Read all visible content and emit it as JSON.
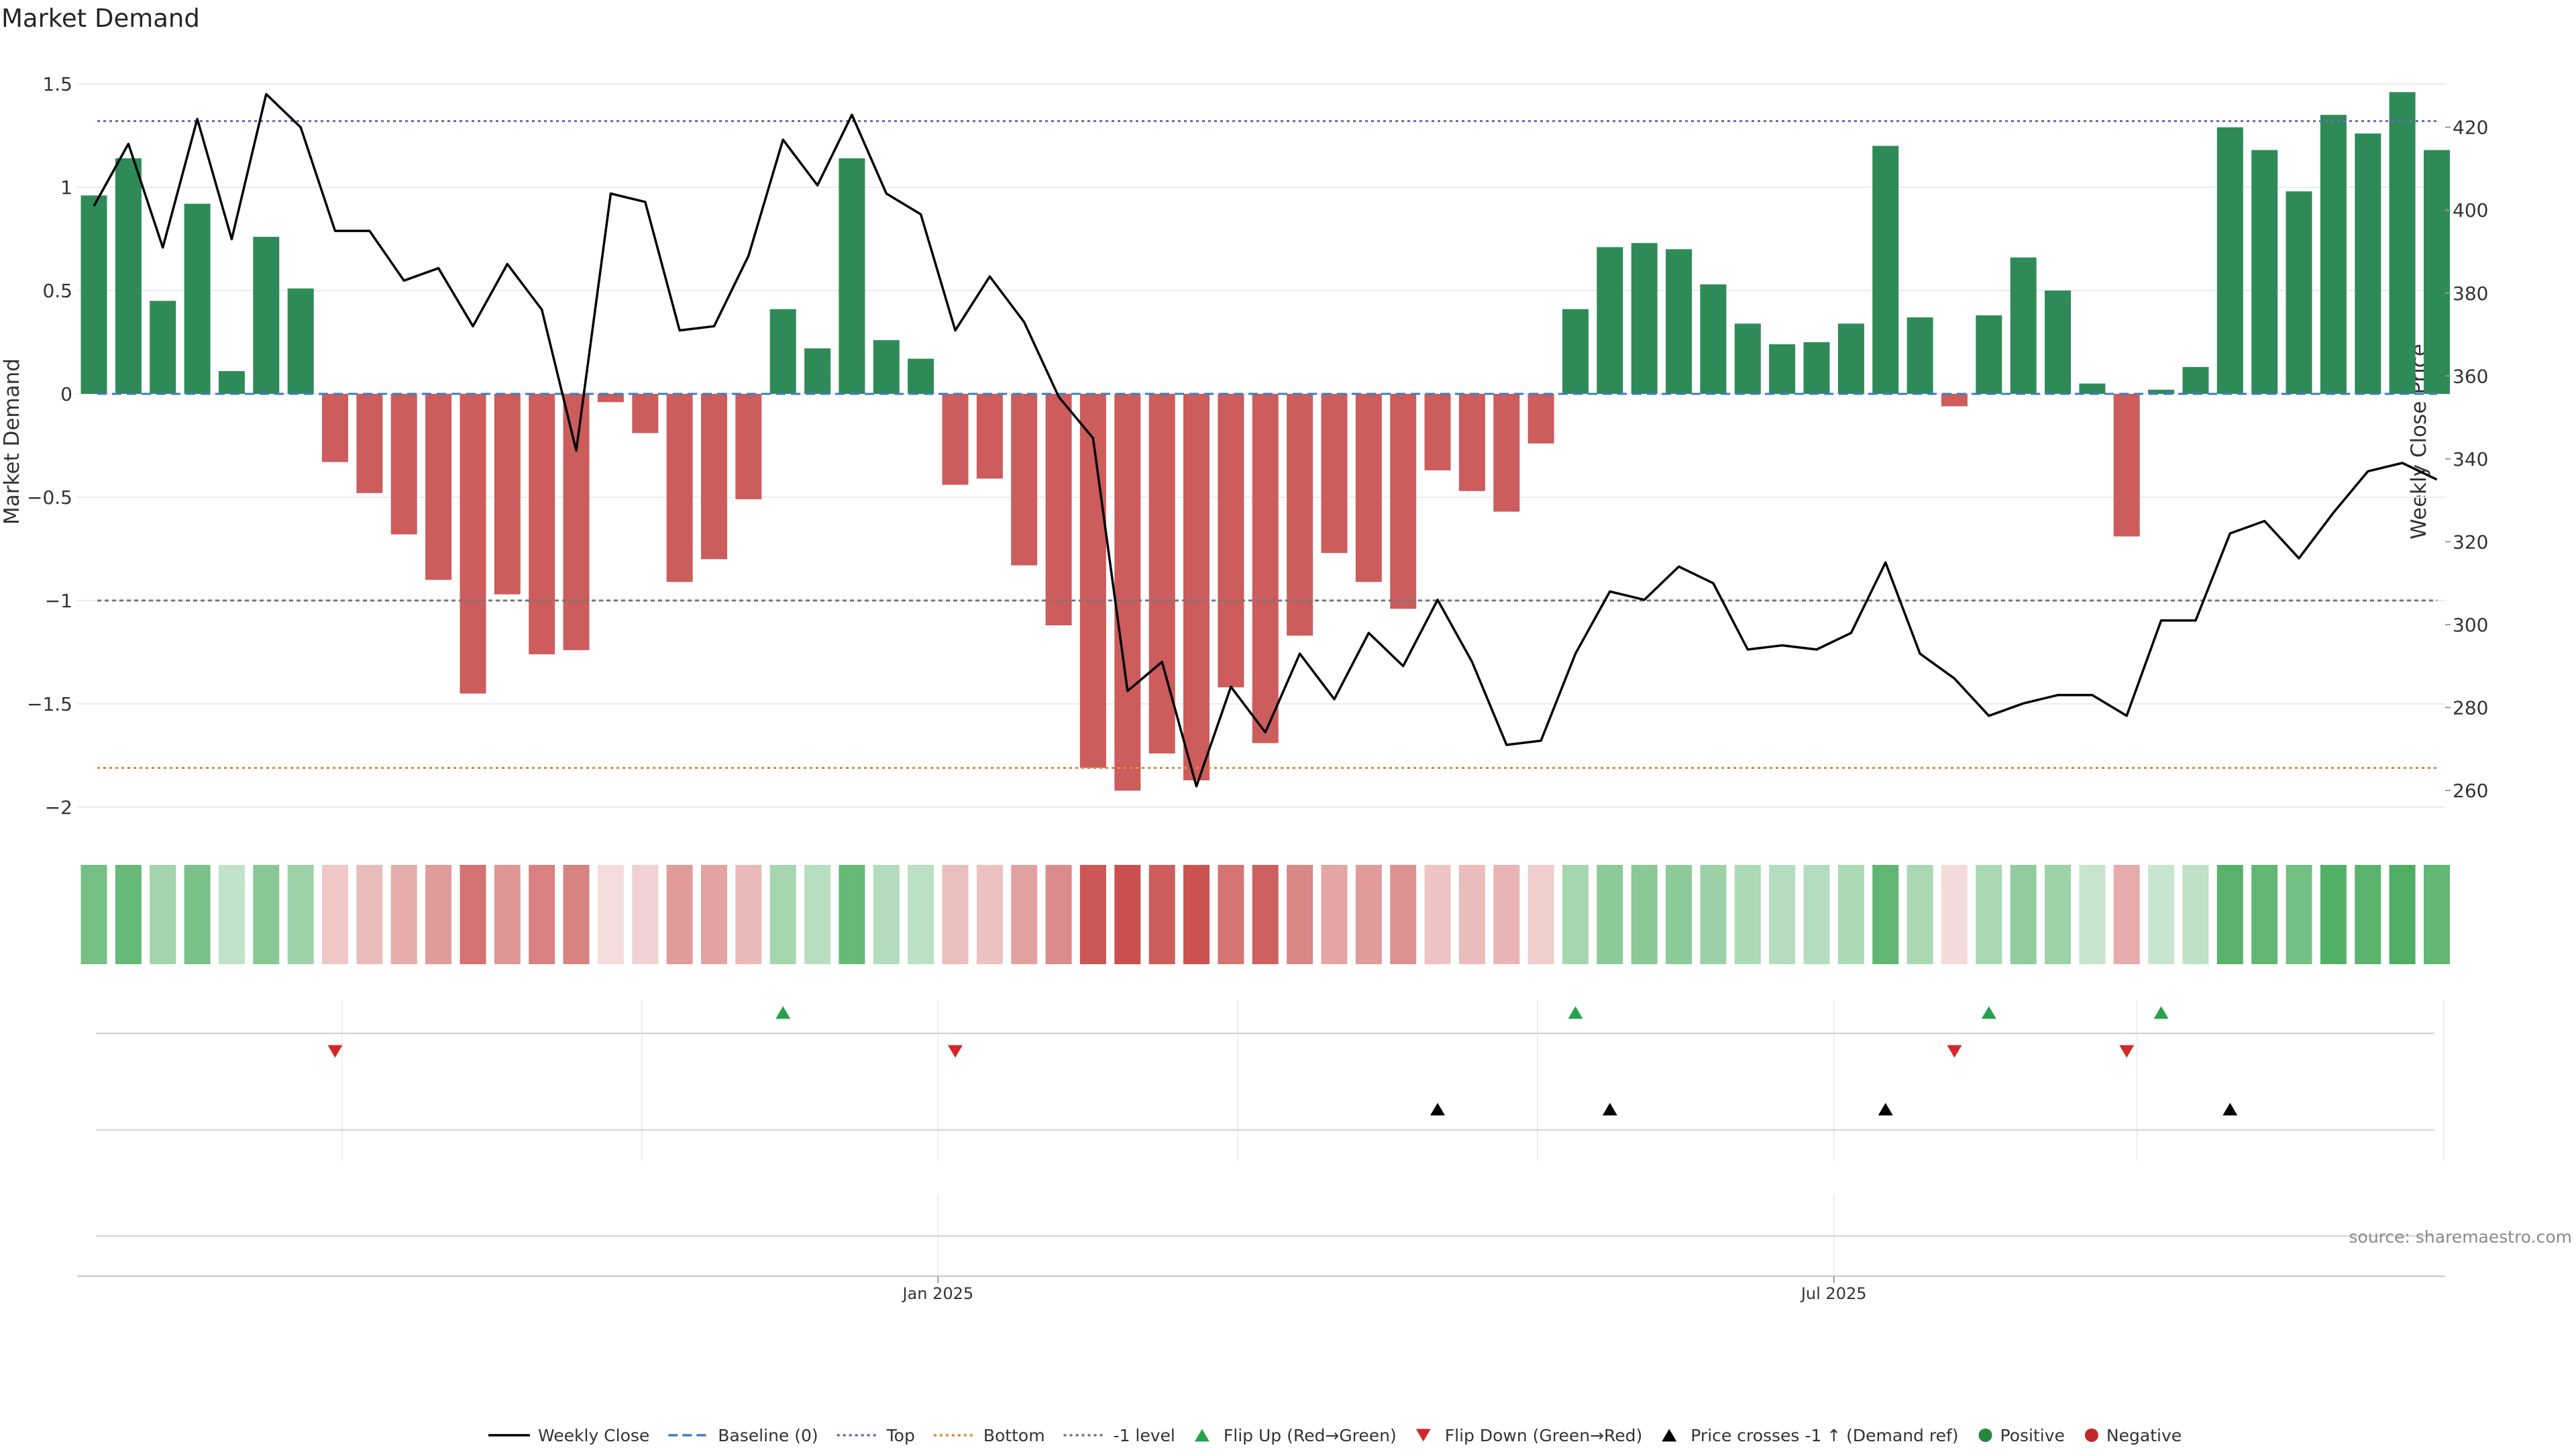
{
  "chart_data": {
    "type": "bar",
    "title": "Market Demand",
    "ylabel": "Market Demand",
    "y2label": "Weekly Close Price",
    "ylim": [
      -2.1,
      1.6
    ],
    "y2lim": [
      254,
      436
    ],
    "yticks": [
      1.5,
      1,
      0.5,
      0,
      -0.5,
      -1,
      -1.5,
      -2
    ],
    "yticks_labels": [
      "1.5",
      "1",
      "0.5",
      "0",
      "−0.5",
      "−1",
      "−1.5",
      "−2"
    ],
    "y2ticks": [
      420,
      400,
      380,
      360,
      340,
      320,
      300,
      280,
      260
    ],
    "reference_lines": {
      "top": 1.32,
      "bottom": -1.81,
      "minus_one": -1.0,
      "baseline": 0
    },
    "x_tick_labels": [
      {
        "label": "Jan 2025",
        "week": 24.5
      },
      {
        "label": "Jul 2025",
        "week": 50.5
      }
    ],
    "series": [
      {
        "name": "Market Demand",
        "values": [
          0.96,
          1.14,
          0.45,
          0.92,
          0.11,
          0.76,
          0.51,
          -0.33,
          -0.48,
          -0.68,
          -0.9,
          -1.45,
          -0.97,
          -1.26,
          -1.24,
          -0.04,
          -0.19,
          -0.91,
          -0.8,
          -0.51,
          0.41,
          0.22,
          1.14,
          0.26,
          0.17,
          -0.44,
          -0.41,
          -0.83,
          -1.12,
          -1.81,
          -1.92,
          -1.74,
          -1.87,
          -1.42,
          -1.69,
          -1.17,
          -0.77,
          -0.91,
          -1.04,
          -0.37,
          -0.47,
          -0.57,
          -0.24,
          0.41,
          0.71,
          0.73,
          0.7,
          0.53,
          0.34,
          0.24,
          0.25,
          0.34,
          1.2,
          0.37,
          -0.06,
          0.38,
          0.66,
          0.5,
          0.05,
          -0.69,
          0.02,
          0.13,
          1.29,
          1.18,
          0.98,
          1.35,
          1.26,
          1.46,
          1.18
        ]
      },
      {
        "name": "Weekly Close",
        "values": [
          401,
          416,
          391,
          422,
          393,
          428,
          420,
          395,
          395,
          383,
          386,
          372,
          387,
          376,
          342,
          404,
          402,
          371,
          372,
          389,
          417,
          406,
          423,
          404,
          399,
          371,
          384,
          373,
          355,
          345,
          284,
          291,
          261,
          285,
          274,
          293,
          282,
          298,
          290,
          306,
          291,
          271,
          272,
          293,
          308,
          306,
          314,
          310,
          294,
          295,
          294,
          298,
          315,
          293,
          287,
          278,
          281,
          283,
          283,
          278,
          301,
          301,
          322,
          325,
          316,
          327,
          337,
          339,
          335
        ]
      }
    ],
    "signal_rows": {
      "flip_up_weeks": [
        20,
        43,
        55,
        60
      ],
      "flip_down_weeks": [
        7,
        25,
        54,
        59
      ],
      "price_cross_weeks": [
        39,
        44,
        52,
        62
      ]
    },
    "legend": [
      {
        "label": "Weekly Close",
        "symbol": "line",
        "color": "#000000"
      },
      {
        "label": "Baseline (0)",
        "symbol": "dash",
        "color": "#3a7fc1"
      },
      {
        "label": "Top",
        "symbol": "dot",
        "color": "#6b6bb8"
      },
      {
        "label": "Bottom",
        "symbol": "dot",
        "color": "#e08a3a"
      },
      {
        "label": "-1 level",
        "symbol": "dot",
        "color": "#777777"
      },
      {
        "label": "Flip Up (Red→Green)",
        "symbol": "tri-up",
        "color": "#27a14a"
      },
      {
        "label": "Flip Down (Green→Red)",
        "symbol": "tri-down",
        "color": "#d62728"
      },
      {
        "label": "Price crosses -1 ↑ (Demand ref)",
        "symbol": "tri-up",
        "color": "#000000"
      },
      {
        "label": "Positive",
        "symbol": "circle",
        "color": "#27873f"
      },
      {
        "label": "Negative",
        "symbol": "circle",
        "color": "#c0282e"
      }
    ],
    "colors": {
      "positive": "#2e8b57",
      "negative": "#cd5c5c",
      "heat_positive": "#4fae63",
      "heat_negative": "#c9504f"
    },
    "source": "source: sharemaestro.com"
  }
}
